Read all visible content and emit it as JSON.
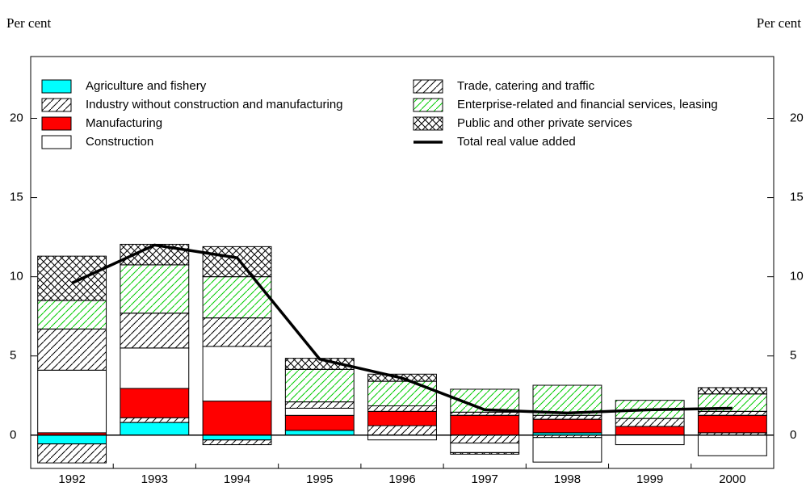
{
  "chart_data": {
    "type": "bar",
    "stacked": true,
    "y_label": "Per cent",
    "y2_label": "Per cent",
    "categories": [
      "1992",
      "1993",
      "1994",
      "1995",
      "1996",
      "1997",
      "1998",
      "1999",
      "2000"
    ],
    "series": [
      {
        "name": "Agriculture and fishery",
        "color": "#00ffff",
        "pattern": "solid",
        "values": [
          -0.55,
          0.8,
          -0.3,
          0.3,
          0,
          0,
          0.15,
          0,
          0
        ]
      },
      {
        "name": "Industry without construction and manufacturing",
        "color": "#ffffff",
        "pattern": "diagonal",
        "values": [
          -1.2,
          0.3,
          -0.3,
          0,
          0.6,
          -0.5,
          -0.15,
          0,
          0.15
        ]
      },
      {
        "name": "Manufacturing",
        "color": "#ff0000",
        "pattern": "solid",
        "values": [
          0.15,
          1.85,
          2.15,
          0.95,
          0.9,
          1.25,
          0.85,
          0.55,
          1.1
        ]
      },
      {
        "name": "Construction",
        "color": "#ffffff",
        "pattern": "solid",
        "values": [
          3.95,
          2.55,
          3.45,
          0.45,
          -0.3,
          -0.6,
          -1.55,
          -0.6,
          -1.3
        ]
      },
      {
        "name": "Trade, catering and traffic",
        "color": "#ffffff",
        "pattern": "diagonal",
        "values": [
          2.6,
          2.2,
          1.8,
          0.4,
          0.35,
          0.2,
          0.25,
          0.5,
          0.25
        ]
      },
      {
        "name": "Enterprise-related and financial services, leasing",
        "color": "#00cc00",
        "pattern": "diagonal",
        "values": [
          1.8,
          3.05,
          2.6,
          2.05,
          1.55,
          1.45,
          1.9,
          1.15,
          1.1
        ]
      },
      {
        "name": "Public and other private services",
        "color": "#ffffff",
        "pattern": "cross",
        "values": [
          2.8,
          1.3,
          1.9,
          0.7,
          0.45,
          -0.1,
          0,
          0,
          0.4
        ]
      },
      {
        "name": "Total real value added",
        "type": "line",
        "color": "#000000",
        "values": [
          9.6,
          12.0,
          11.2,
          4.8,
          3.6,
          1.6,
          1.4,
          1.6,
          1.7
        ]
      }
    ],
    "ylim": [
      -2.1,
      23.9
    ],
    "yticks": [
      0,
      5,
      10,
      15,
      20
    ],
    "y2lim": [
      -2.1,
      23.9
    ],
    "y2ticks": [
      0,
      5,
      10,
      15,
      20
    ]
  }
}
